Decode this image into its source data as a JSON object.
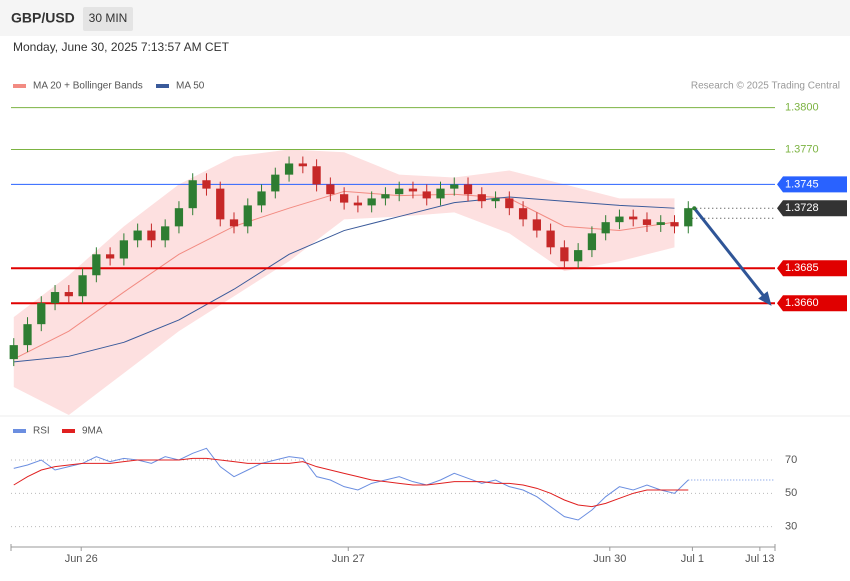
{
  "header": {
    "symbol": "GBP/USD",
    "timeframe": "30 MIN",
    "timestamp": "Monday, June 30, 2025 7:13:57 AM CET"
  },
  "chart_data": [
    {
      "type": "candlestick",
      "credit": "Research © 2025 Trading Central",
      "up_color": "#2e7d32",
      "down_color": "#c62828",
      "open": [
        1.362,
        1.363,
        1.3645,
        1.366,
        1.3668,
        1.3665,
        1.368,
        1.3695,
        1.3692,
        1.3705,
        1.3712,
        1.3705,
        1.3715,
        1.3728,
        1.3748,
        1.3742,
        1.372,
        1.3715,
        1.373,
        1.374,
        1.3752,
        1.376,
        1.3758,
        1.3745,
        1.3738,
        1.3732,
        1.373,
        1.3735,
        1.3738,
        1.3742,
        1.374,
        1.3735,
        1.3742,
        1.3745,
        1.3738,
        1.3733,
        1.3735,
        1.3728,
        1.372,
        1.3712,
        1.37,
        1.369,
        1.3698,
        1.371,
        1.3718,
        1.3722,
        1.372,
        1.3716,
        1.3718,
        1.3715
      ],
      "high": [
        1.3635,
        1.365,
        1.3665,
        1.3673,
        1.3673,
        1.3685,
        1.37,
        1.37,
        1.371,
        1.3717,
        1.3717,
        1.372,
        1.3733,
        1.3753,
        1.3753,
        1.3747,
        1.3725,
        1.3735,
        1.3745,
        1.3757,
        1.3765,
        1.3765,
        1.3763,
        1.375,
        1.3743,
        1.3737,
        1.374,
        1.3743,
        1.3747,
        1.3747,
        1.3745,
        1.3747,
        1.375,
        1.375,
        1.3743,
        1.374,
        1.374,
        1.3733,
        1.3725,
        1.3717,
        1.3705,
        1.3703,
        1.3715,
        1.3723,
        1.3727,
        1.3727,
        1.3725,
        1.3723,
        1.3723,
        1.3733
      ],
      "low": [
        1.3615,
        1.3625,
        1.364,
        1.3655,
        1.366,
        1.366,
        1.3675,
        1.3687,
        1.3687,
        1.37,
        1.37,
        1.37,
        1.371,
        1.3723,
        1.3737,
        1.3715,
        1.371,
        1.371,
        1.3725,
        1.3735,
        1.3747,
        1.3753,
        1.374,
        1.3733,
        1.3727,
        1.3725,
        1.3725,
        1.373,
        1.3733,
        1.3735,
        1.373,
        1.373,
        1.3737,
        1.3733,
        1.3728,
        1.3728,
        1.3723,
        1.3715,
        1.3707,
        1.3695,
        1.3685,
        1.3685,
        1.3693,
        1.3705,
        1.3713,
        1.3715,
        1.3711,
        1.3711,
        1.371,
        1.371
      ],
      "close": [
        1.363,
        1.3645,
        1.366,
        1.3668,
        1.3665,
        1.368,
        1.3695,
        1.3692,
        1.3705,
        1.3712,
        1.3705,
        1.3715,
        1.3728,
        1.3748,
        1.3742,
        1.372,
        1.3715,
        1.373,
        1.374,
        1.3752,
        1.376,
        1.3758,
        1.3745,
        1.3738,
        1.3732,
        1.373,
        1.3735,
        1.3738,
        1.3742,
        1.374,
        1.3735,
        1.3742,
        1.3745,
        1.3738,
        1.3733,
        1.3735,
        1.3728,
        1.372,
        1.3712,
        1.37,
        1.369,
        1.3698,
        1.371,
        1.3718,
        1.3722,
        1.372,
        1.3716,
        1.3718,
        1.3715,
        1.3728
      ],
      "series": [
        {
          "name": "MA 20 + Bollinger Bands",
          "color": "#f28b82",
          "band_color": "#fde0e0",
          "x": [
            0,
            4,
            8,
            12,
            16,
            20,
            24,
            28,
            32,
            36,
            40,
            44,
            48
          ],
          "values": [
            1.362,
            1.364,
            1.3668,
            1.3695,
            1.3715,
            1.3728,
            1.374,
            1.3737,
            1.3738,
            1.3735,
            1.3715,
            1.3712,
            1.3718
          ],
          "upper": [
            1.365,
            1.368,
            1.3715,
            1.3745,
            1.3765,
            1.377,
            1.3768,
            1.3752,
            1.375,
            1.3755,
            1.3745,
            1.3735,
            1.3735
          ],
          "lower": [
            1.36,
            1.358,
            1.361,
            1.364,
            1.3665,
            1.369,
            1.372,
            1.3722,
            1.3725,
            1.371,
            1.3683,
            1.369,
            1.37
          ]
        },
        {
          "name": "MA 50",
          "color": "#3a5a9a",
          "x": [
            0,
            4,
            8,
            12,
            16,
            20,
            24,
            28,
            32,
            36,
            40,
            44,
            48
          ],
          "values": [
            1.3618,
            1.3622,
            1.3632,
            1.3648,
            1.367,
            1.3695,
            1.3712,
            1.3722,
            1.3732,
            1.3736,
            1.3733,
            1.373,
            1.3728
          ]
        }
      ],
      "levels": [
        {
          "value": 1.38,
          "label": "1.3800",
          "color": "#7cb342",
          "box": false,
          "dotted": false
        },
        {
          "value": 1.377,
          "label": "1.3770",
          "color": "#7cb342",
          "box": false,
          "dotted": false
        },
        {
          "value": 1.3745,
          "label": "1.3745",
          "color": "#2962ff",
          "box": true,
          "dotted": false
        },
        {
          "value": 1.3728,
          "label": "1.3728",
          "color": "#333333",
          "box": true,
          "dotted": true
        },
        {
          "value": 1.3685,
          "label": "1.3685",
          "color": "#e00000",
          "box": true,
          "dotted": false
        },
        {
          "value": 1.366,
          "label": "1.3660",
          "color": "#e00000",
          "box": true,
          "dotted": false
        }
      ],
      "forecast_color": "#2f5597",
      "ylim": [
        1.358,
        1.3809
      ],
      "xlim": [
        -0.2,
        55.3
      ],
      "xticks": [
        {
          "value": 4.9,
          "label": "Jun 26"
        },
        {
          "value": 24.3,
          "label": "Jun 27"
        },
        {
          "value": 43.3,
          "label": "Jun 30"
        },
        {
          "value": 49.3,
          "label": "Jul 1"
        },
        {
          "value": 54.2,
          "label": "Jul 13"
        }
      ]
    },
    {
      "type": "line",
      "series": [
        {
          "name": "RSI",
          "color": "#6b8ee0",
          "values": [
            65,
            67,
            70,
            64,
            66,
            68,
            72,
            69,
            71,
            70,
            68,
            72,
            70,
            74,
            77,
            66,
            60,
            64,
            68,
            70,
            72,
            71,
            60,
            58,
            54,
            52,
            56,
            58,
            60,
            57,
            55,
            58,
            62,
            59,
            56,
            58,
            54,
            52,
            48,
            42,
            36,
            34,
            40,
            48,
            54,
            52,
            55,
            52,
            50,
            58
          ]
        },
        {
          "name": "9MA",
          "color": "#e02020",
          "values": [
            55,
            60,
            64,
            66,
            67,
            68,
            68,
            68,
            69,
            70,
            70,
            70,
            70,
            71,
            71,
            70,
            69,
            68,
            68,
            68,
            68,
            69,
            66,
            64,
            62,
            60,
            58,
            57,
            56,
            55,
            55,
            56,
            57,
            57,
            57,
            56,
            56,
            55,
            53,
            50,
            46,
            43,
            42,
            44,
            47,
            50,
            52,
            52,
            52,
            52
          ]
        }
      ],
      "ylim": [
        22,
        79
      ],
      "yticks": [
        30,
        50,
        70
      ],
      "xlim": [
        -0.2,
        55.3
      ]
    }
  ]
}
